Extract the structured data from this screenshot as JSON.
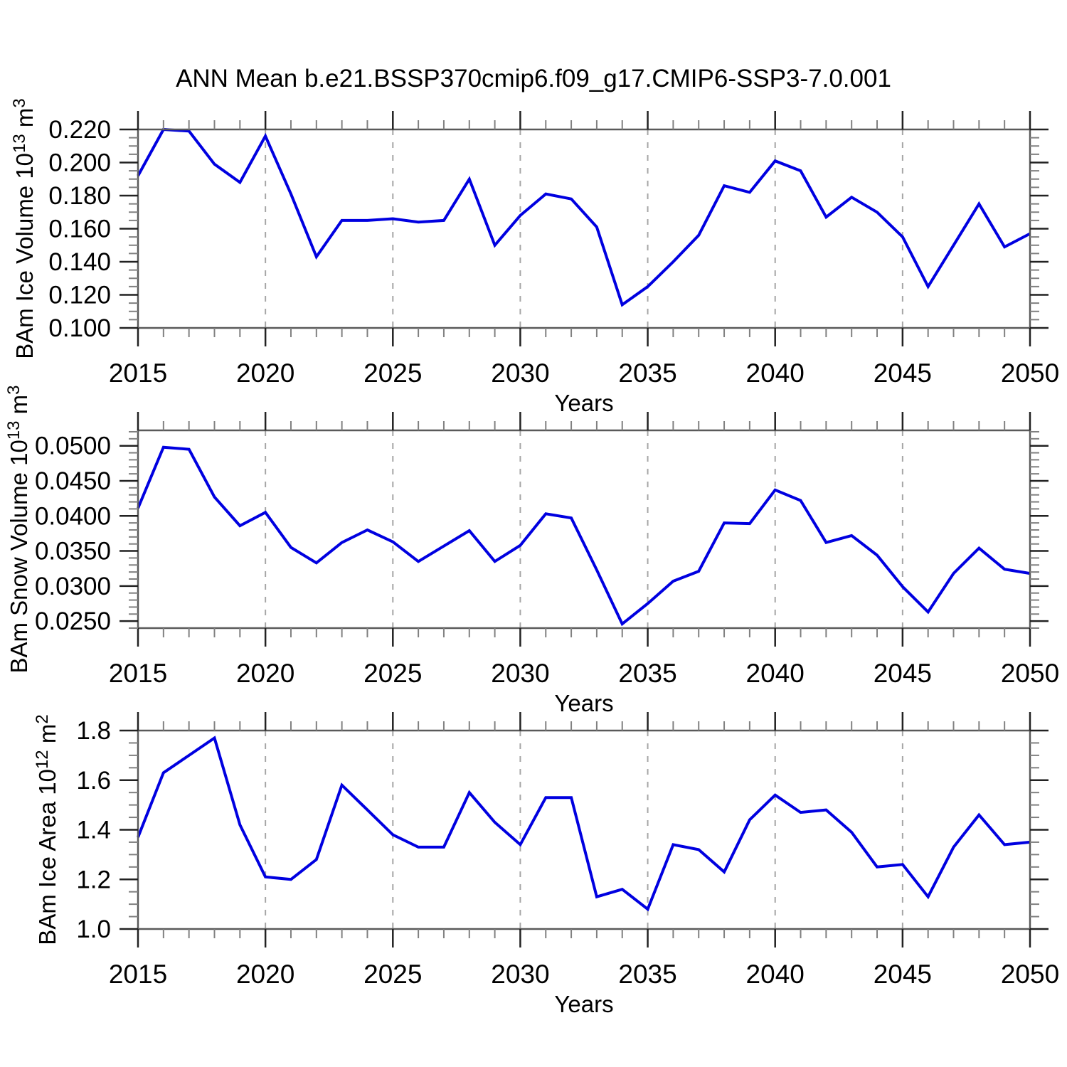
{
  "figure": {
    "title": "ANN Mean b.e21.BSSP370cmip6.f09_g17.CMIP6-SSP3-7.0.001",
    "background": "#ffffff",
    "line_color": "#0000e0",
    "frame_color": "#5a5a5a",
    "major_tick_color": "#222222",
    "minor_tick_color": "#808080",
    "grid_color": "#a6a6a6",
    "x_axis": {
      "min": 2015,
      "max": 2050,
      "label": "Years",
      "major_tick_years": [
        2015,
        2020,
        2025,
        2030,
        2035,
        2040,
        2045,
        2050
      ],
      "minor_tick_step_years": 1,
      "grid_years": [
        2020,
        2025,
        2030,
        2035,
        2040,
        2045
      ]
    }
  },
  "chart_data": [
    {
      "type": "line",
      "title": "ANN Mean b.e21.BSSP370cmip6.f09_g17.CMIP6-SSP3-7.0.001",
      "ylabel": "BAm Ice Volume 10^13 m^3",
      "ylabel_parts": {
        "base": "BAm Ice Volume 10",
        "exp": "13",
        "unit": " m",
        "unit_exp": "3"
      },
      "xlabel": "Years",
      "legend": "none",
      "grid": "vertical-dashed",
      "x": [
        2015,
        2016,
        2017,
        2018,
        2019,
        2020,
        2021,
        2022,
        2023,
        2024,
        2025,
        2026,
        2027,
        2028,
        2029,
        2030,
        2031,
        2032,
        2033,
        2034,
        2035,
        2036,
        2037,
        2038,
        2039,
        2040,
        2041,
        2042,
        2043,
        2044,
        2045,
        2046,
        2047,
        2048,
        2049,
        2050
      ],
      "values": [
        0.192,
        0.22,
        0.219,
        0.199,
        0.188,
        0.216,
        0.181,
        0.143,
        0.165,
        0.165,
        0.166,
        0.164,
        0.165,
        0.19,
        0.15,
        0.168,
        0.181,
        0.178,
        0.161,
        0.114,
        0.125,
        0.14,
        0.156,
        0.186,
        0.182,
        0.201,
        0.195,
        0.167,
        0.179,
        0.17,
        0.155,
        0.125,
        0.15,
        0.175,
        0.149,
        0.157
      ],
      "ylim": [
        0.1,
        0.22
      ],
      "frame_ylim": [
        0.1,
        0.22
      ],
      "ytick_values": [
        0.22,
        0.2,
        0.18,
        0.16,
        0.14,
        0.12,
        0.1
      ],
      "ytick_labels": [
        "0.220",
        "0.200",
        "0.180",
        "0.160",
        "0.140",
        "0.120",
        "0.100"
      ],
      "ytick_minor_step": 0.005,
      "xtick_values": [
        2015,
        2020,
        2025,
        2030,
        2035,
        2040,
        2045,
        2050
      ],
      "xtick_labels": [
        "2015",
        "2020",
        "2025",
        "2030",
        "2035",
        "2040",
        "2045",
        "2050"
      ]
    },
    {
      "type": "line",
      "title": "",
      "ylabel": "BAm Snow Volume 10^13 m^3",
      "ylabel_parts": {
        "base": "BAm Snow Volume 10",
        "exp": "13",
        "unit": " m",
        "unit_exp": "3"
      },
      "xlabel": "Years",
      "legend": "none",
      "grid": "vertical-dashed",
      "x": [
        2015,
        2016,
        2017,
        2018,
        2019,
        2020,
        2021,
        2022,
        2023,
        2024,
        2025,
        2026,
        2027,
        2028,
        2029,
        2030,
        2031,
        2032,
        2033,
        2034,
        2035,
        2036,
        2037,
        2038,
        2039,
        2040,
        2041,
        2042,
        2043,
        2044,
        2045,
        2046,
        2047,
        2048,
        2049,
        2050
      ],
      "values": [
        0.0411,
        0.0498,
        0.0495,
        0.0427,
        0.0386,
        0.0405,
        0.0355,
        0.0333,
        0.0362,
        0.038,
        0.0363,
        0.0335,
        0.0357,
        0.0379,
        0.0335,
        0.0358,
        0.0403,
        0.0397,
        0.0323,
        0.0246,
        0.0275,
        0.0307,
        0.0321,
        0.039,
        0.0389,
        0.0437,
        0.0422,
        0.0362,
        0.0372,
        0.0344,
        0.0299,
        0.0263,
        0.0318,
        0.0354,
        0.0324,
        0.0318
      ],
      "ylim": [
        0.025,
        0.05
      ],
      "frame_ylim": [
        0.024,
        0.0522
      ],
      "ytick_values": [
        0.05,
        0.045,
        0.04,
        0.035,
        0.03,
        0.025
      ],
      "ytick_labels": [
        "0.0500",
        "0.0450",
        "0.0400",
        "0.0350",
        "0.0300",
        "0.0250"
      ],
      "ytick_minor_step": 0.001,
      "xtick_values": [
        2015,
        2020,
        2025,
        2030,
        2035,
        2040,
        2045,
        2050
      ],
      "xtick_labels": [
        "2015",
        "2020",
        "2025",
        "2030",
        "2035",
        "2040",
        "2045",
        "2050"
      ]
    },
    {
      "type": "line",
      "title": "",
      "ylabel": "BAm Ice Area 10^12 m^2",
      "ylabel_parts": {
        "base": "BAm Ice Area 10",
        "exp": "12",
        "unit": " m",
        "unit_exp": "2"
      },
      "xlabel": "Years",
      "legend": "none",
      "grid": "vertical-dashed",
      "x": [
        2015,
        2016,
        2017,
        2018,
        2019,
        2020,
        2021,
        2022,
        2023,
        2024,
        2025,
        2026,
        2027,
        2028,
        2029,
        2030,
        2031,
        2032,
        2033,
        2034,
        2035,
        2036,
        2037,
        2038,
        2039,
        2040,
        2041,
        2042,
        2043,
        2044,
        2045,
        2046,
        2047,
        2048,
        2049,
        2050
      ],
      "values": [
        1.37,
        1.63,
        1.7,
        1.77,
        1.42,
        1.21,
        1.2,
        1.28,
        1.58,
        1.48,
        1.38,
        1.33,
        1.33,
        1.55,
        1.43,
        1.34,
        1.53,
        1.53,
        1.13,
        1.16,
        1.08,
        1.34,
        1.32,
        1.23,
        1.44,
        1.54,
        1.47,
        1.48,
        1.39,
        1.25,
        1.26,
        1.13,
        1.33,
        1.46,
        1.34,
        1.35
      ],
      "ylim": [
        1.0,
        1.8
      ],
      "frame_ylim": [
        1.0,
        1.8
      ],
      "ytick_values": [
        1.8,
        1.6,
        1.4,
        1.2,
        1.0
      ],
      "ytick_labels": [
        "1.8",
        "1.6",
        "1.4",
        "1.2",
        "1.0"
      ],
      "ytick_minor_step": 0.05,
      "xtick_values": [
        2015,
        2020,
        2025,
        2030,
        2035,
        2040,
        2045,
        2050
      ],
      "xtick_labels": [
        "2015",
        "2020",
        "2025",
        "2030",
        "2035",
        "2040",
        "2045",
        "2050"
      ]
    }
  ]
}
